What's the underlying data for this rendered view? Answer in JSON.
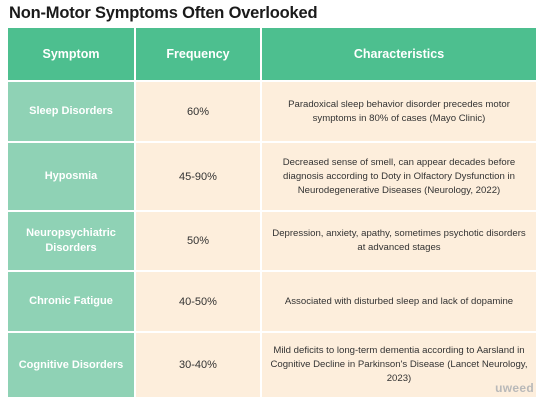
{
  "title": "Non-Motor Symptoms Often Overlooked",
  "table": {
    "headers": [
      "Symptom",
      "Frequency",
      "Characteristics"
    ],
    "rows": [
      {
        "symptom": "Sleep Disorders",
        "frequency": "60%",
        "characteristics": "Paradoxical sleep behavior disorder precedes motor symptoms in 80% of cases (Mayo Clinic)"
      },
      {
        "symptom": "Hyposmia",
        "frequency": "45-90%",
        "characteristics": "Decreased sense of smell, can appear decades before diagnosis according to Doty in Olfactory Dysfunction in Neurodegenerative Diseases (Neurology, 2022)"
      },
      {
        "symptom": "Neuropsychiatric Disorders",
        "frequency": "50%",
        "characteristics": "Depression, anxiety, apathy, sometimes psychotic disorders at advanced stages"
      },
      {
        "symptom": "Chronic Fatigue",
        "frequency": "40-50%",
        "characteristics": "Associated with disturbed sleep and lack of dopamine"
      },
      {
        "symptom": "Cognitive Disorders",
        "frequency": "30-40%",
        "characteristics": "Mild deficits to long-term dementia according to Aarsland in Cognitive Decline in Parkinson's Disease (Lancet Neurology, 2023)"
      }
    ]
  },
  "logo": "uweed",
  "colors": {
    "header_bg": "#4dbf8f",
    "symptom_bg": "#8fd2b5",
    "cell_bg": "#fdeedc"
  }
}
